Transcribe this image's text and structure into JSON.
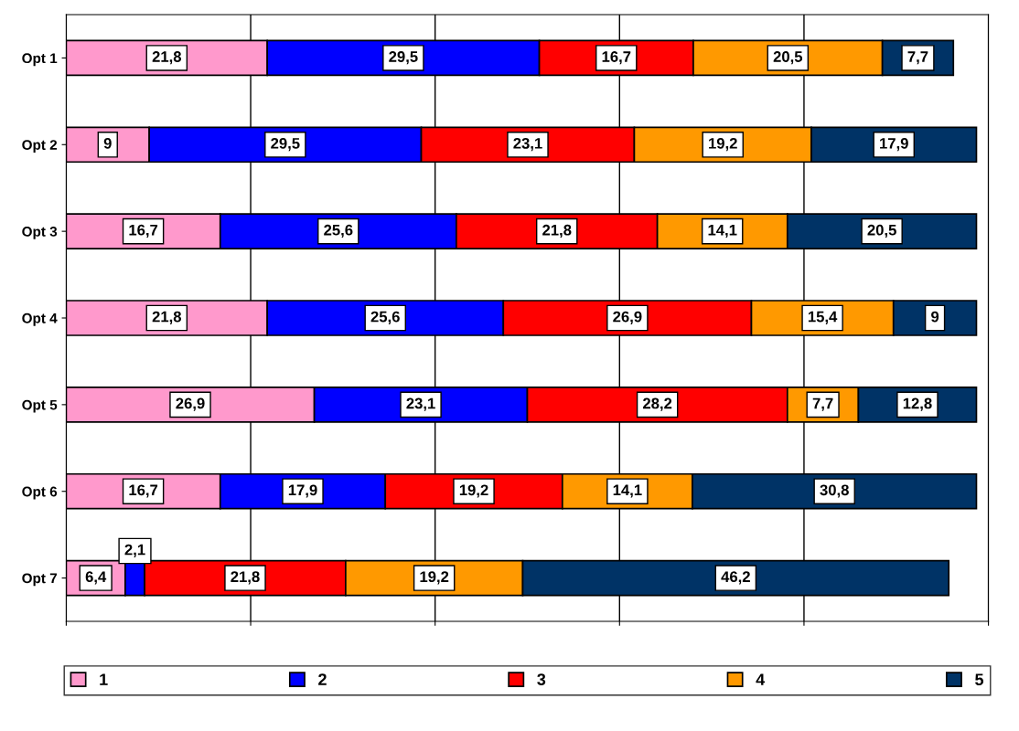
{
  "chart_data": {
    "type": "bar",
    "orientation": "horizontal",
    "stacked": true,
    "categories": [
      "Opt 1",
      "Opt 2",
      "Opt 3",
      "Opt 4",
      "Opt 5",
      "Opt 6",
      "Opt 7"
    ],
    "series": [
      {
        "name": "1",
        "color": "#ff99cc",
        "values": [
          21.8,
          9,
          16.7,
          21.8,
          26.9,
          16.7,
          6.4
        ],
        "value_labels": [
          "21,8",
          "9",
          "16,7",
          "21,8",
          "26,9",
          "16,7",
          "6,4"
        ]
      },
      {
        "name": "2",
        "color": "#0000ff",
        "values": [
          29.5,
          29.5,
          25.6,
          25.6,
          23.1,
          17.9,
          2.1
        ],
        "value_labels": [
          "29,5",
          "29,5",
          "25,6",
          "25,6",
          "23,1",
          "17,9",
          "2,1"
        ]
      },
      {
        "name": "3",
        "color": "#ff0000",
        "values": [
          16.7,
          23.1,
          21.8,
          26.9,
          28.2,
          19.2,
          21.8
        ],
        "value_labels": [
          "16,7",
          "23,1",
          "21,8",
          "26,9",
          "28,2",
          "19,2",
          "21,8"
        ]
      },
      {
        "name": "4",
        "color": "#ff9900",
        "values": [
          20.5,
          19.2,
          14.1,
          15.4,
          7.7,
          14.1,
          19.2
        ],
        "value_labels": [
          "20,5",
          "19,2",
          "14,1",
          "15,4",
          "7,7",
          "14,1",
          "19,2"
        ]
      },
      {
        "name": "5",
        "color": "#003366",
        "values": [
          7.7,
          17.9,
          20.5,
          9,
          12.8,
          30.8,
          46.2
        ],
        "value_labels": [
          "7,7",
          "17,9",
          "20,5",
          "9",
          "12,8",
          "30,8",
          "46,2"
        ]
      }
    ],
    "xlim": [
      0,
      100
    ],
    "xticks": [
      {
        "value": 0,
        "label": null
      },
      {
        "value": 20,
        "label": null
      },
      {
        "value": 40,
        "label": null
      },
      {
        "value": 60,
        "label": null
      },
      {
        "value": 80,
        "label": null
      },
      {
        "value": 100,
        "label": null
      }
    ],
    "tick_labels": "y",
    "grid": "x",
    "legend": "bottom"
  }
}
